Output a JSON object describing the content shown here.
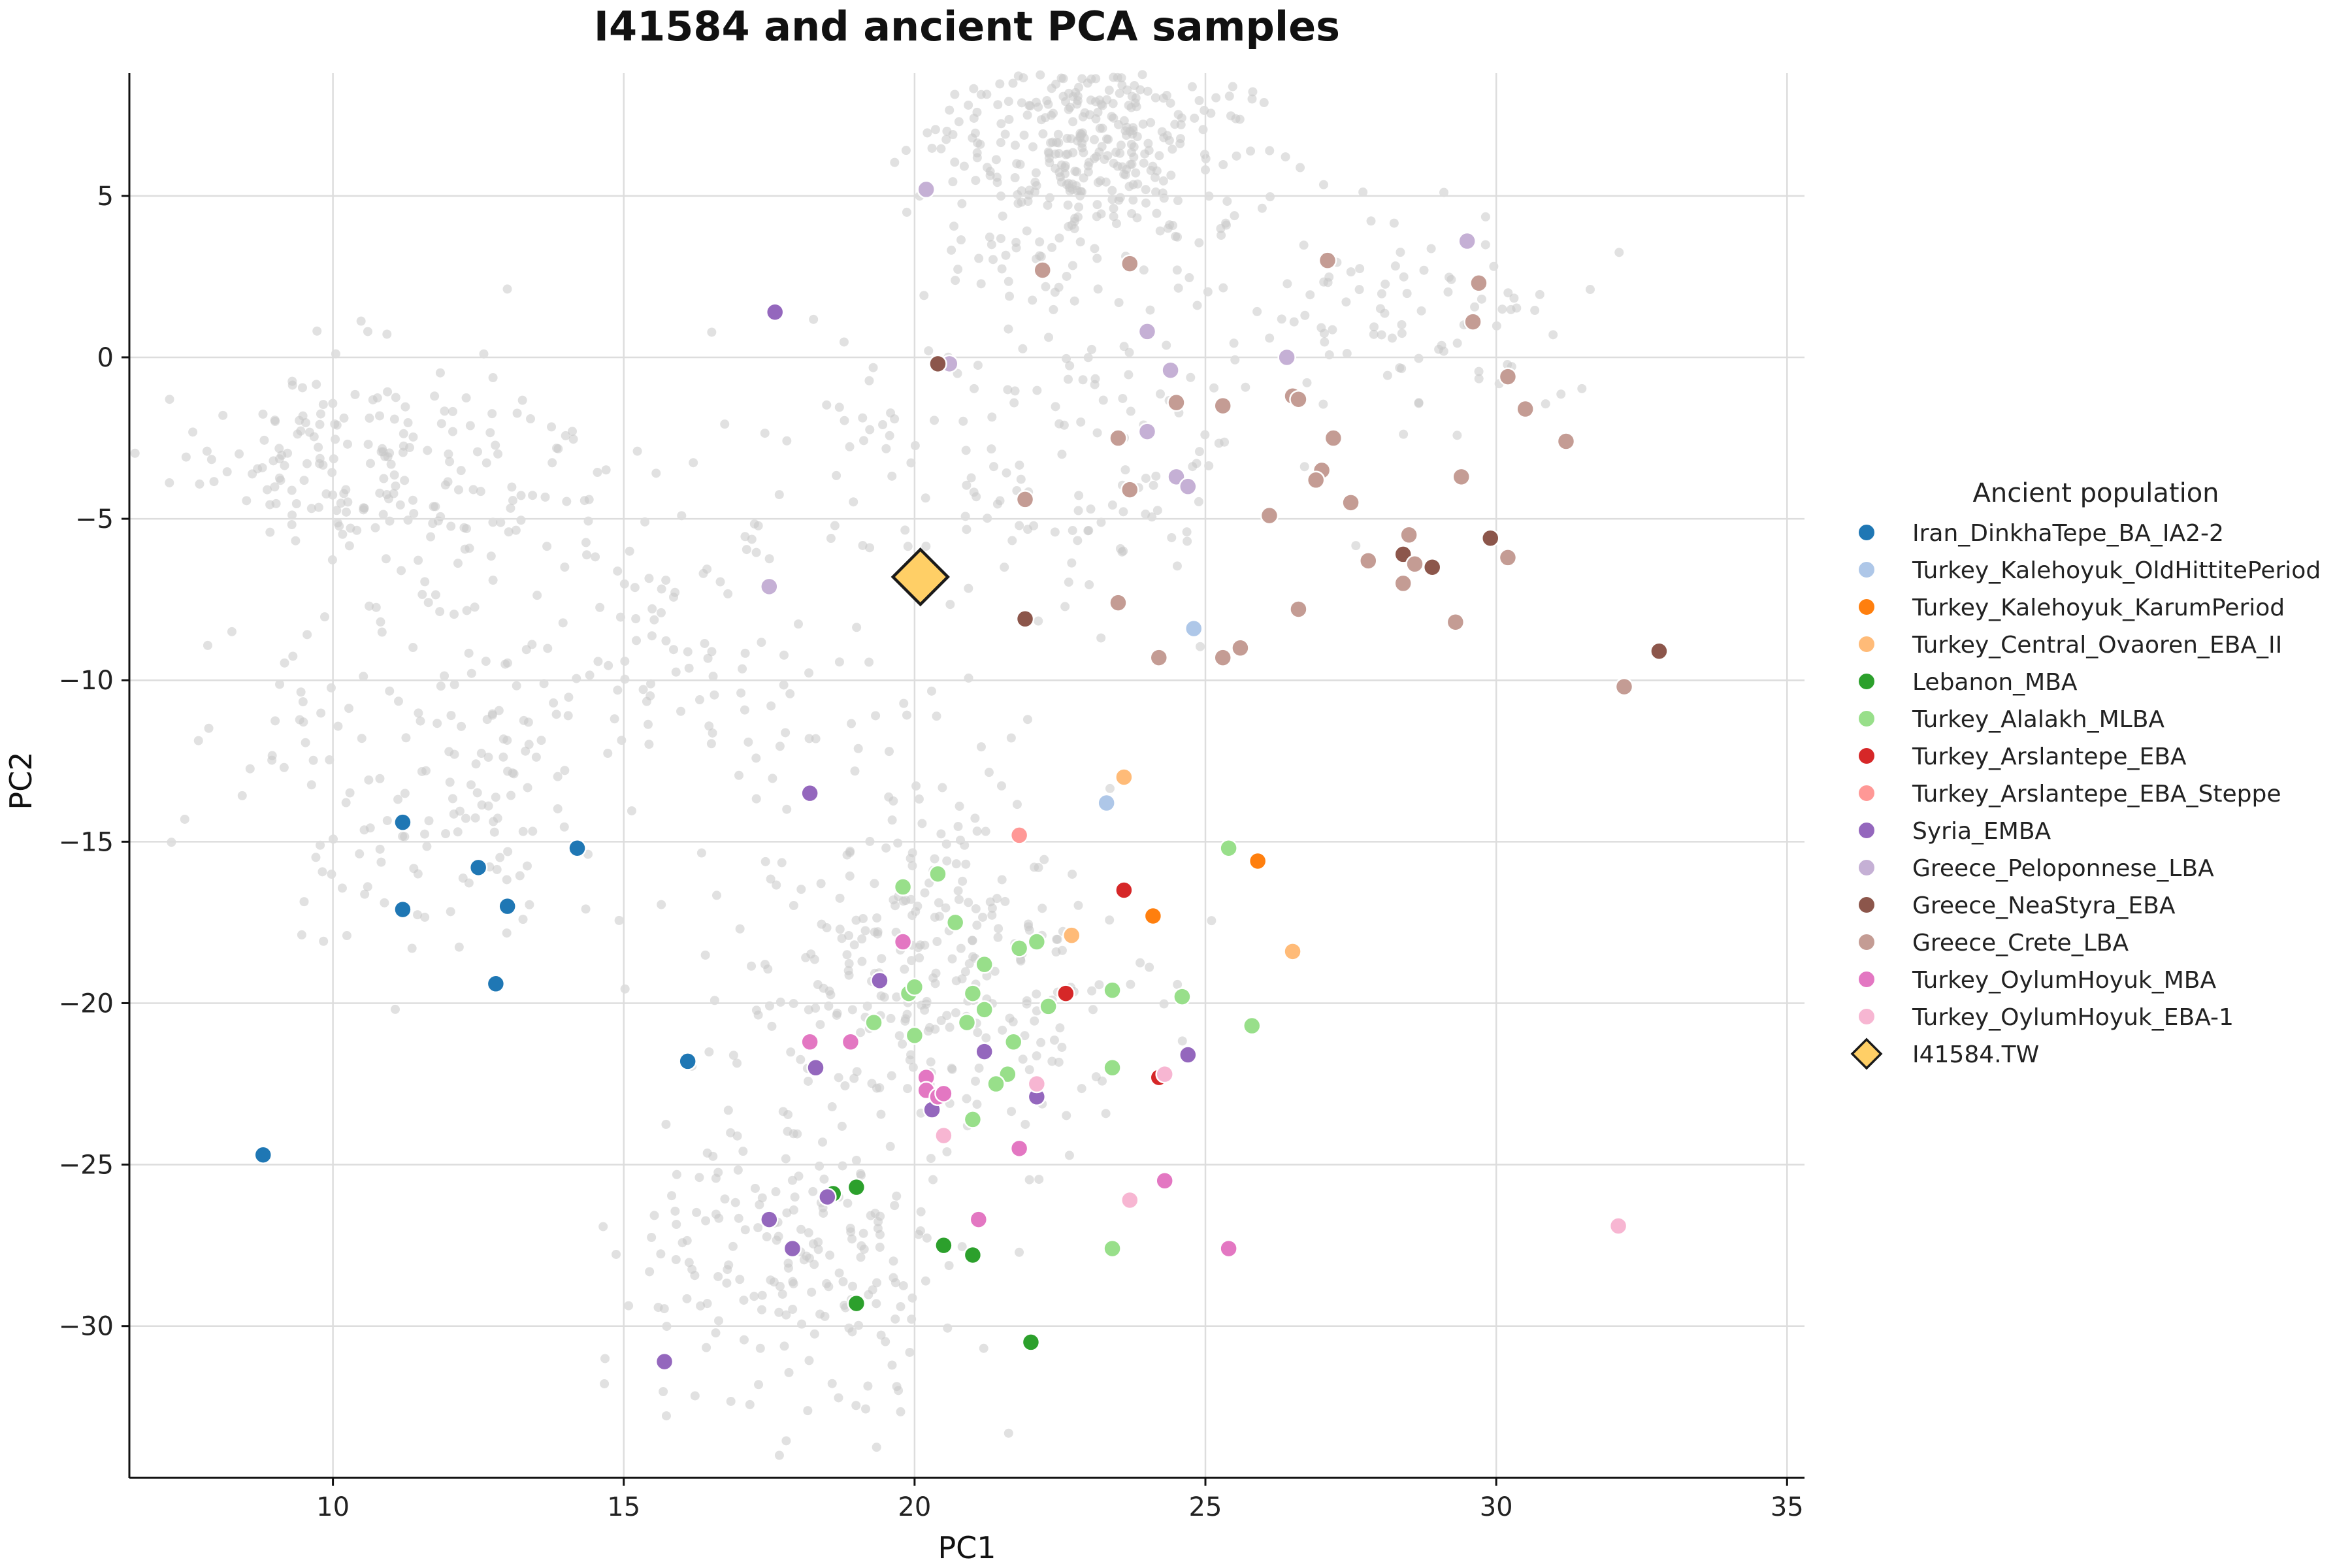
{
  "chart_data": {
    "type": "scatter",
    "title": "I41584 and ancient PCA samples",
    "xlabel": "PC1",
    "ylabel": "PC2",
    "xlim": [
      6.5,
      35.3
    ],
    "ylim": [
      -34.7,
      8.8
    ],
    "xticks": [
      10,
      15,
      20,
      25,
      30,
      35
    ],
    "yticks": [
      5,
      0,
      -5,
      -10,
      -15,
      -20,
      -25,
      -30
    ],
    "x_tick_labels": [
      "10",
      "15",
      "20",
      "25",
      "30",
      "35"
    ],
    "y_tick_labels": [
      "5",
      "0",
      "−5",
      "−10",
      "−15",
      "−20",
      "−25",
      "−30"
    ],
    "grid": true,
    "legend_placement": "right, outside plot",
    "legend_title": "Ancient population",
    "background_color": "#c8c8c8",
    "series": [
      {
        "name": "Iran_DinkhaTepe_BA_IA2-2",
        "color": "#1f77b4",
        "points": [
          [
            11.2,
            -14.4
          ],
          [
            11.2,
            -17.1
          ],
          [
            12.5,
            -15.8
          ],
          [
            13.0,
            -17.0
          ],
          [
            14.2,
            -15.2
          ],
          [
            12.8,
            -19.4
          ],
          [
            16.1,
            -21.8
          ],
          [
            8.8,
            -24.7
          ]
        ]
      },
      {
        "name": "Turkey_Kalehoyuk_OldHittitePeriod",
        "color": "#aec7e8",
        "points": [
          [
            23.3,
            -13.8
          ],
          [
            24.8,
            -8.4
          ]
        ]
      },
      {
        "name": "Turkey_Kalehoyuk_KarumPeriod",
        "color": "#ff7f0e",
        "points": [
          [
            25.9,
            -15.6
          ],
          [
            24.1,
            -17.3
          ]
        ]
      },
      {
        "name": "Turkey_Central_Ovaoren_EBA_II",
        "color": "#ffbb78",
        "points": [
          [
            23.6,
            -13.0
          ],
          [
            22.7,
            -17.9
          ],
          [
            26.5,
            -18.4
          ]
        ]
      },
      {
        "name": "Lebanon_MBA",
        "color": "#2ca02c",
        "points": [
          [
            18.6,
            -25.9
          ],
          [
            19.0,
            -25.7
          ],
          [
            20.5,
            -27.5
          ],
          [
            21.0,
            -27.8
          ],
          [
            19.0,
            -29.3
          ],
          [
            22.0,
            -30.5
          ]
        ]
      },
      {
        "name": "Turkey_Alalakh_MLBA",
        "color": "#98df8a",
        "points": [
          [
            19.8,
            -16.4
          ],
          [
            20.4,
            -16.0
          ],
          [
            20.7,
            -17.5
          ],
          [
            21.8,
            -18.3
          ],
          [
            22.1,
            -18.1
          ],
          [
            21.2,
            -18.8
          ],
          [
            19.9,
            -19.7
          ],
          [
            20.0,
            -19.5
          ],
          [
            21.0,
            -19.7
          ],
          [
            21.2,
            -20.2
          ],
          [
            22.3,
            -20.1
          ],
          [
            23.4,
            -19.6
          ],
          [
            24.6,
            -19.8
          ],
          [
            19.3,
            -20.6
          ],
          [
            20.0,
            -21.0
          ],
          [
            20.9,
            -20.6
          ],
          [
            21.7,
            -21.2
          ],
          [
            21.6,
            -22.2
          ],
          [
            21.4,
            -22.5
          ],
          [
            23.4,
            -22.0
          ],
          [
            21.0,
            -23.6
          ],
          [
            25.4,
            -15.2
          ],
          [
            25.8,
            -20.7
          ],
          [
            23.4,
            -27.6
          ]
        ]
      },
      {
        "name": "Turkey_Arslantepe_EBA",
        "color": "#d62728",
        "points": [
          [
            23.6,
            -16.5
          ],
          [
            22.6,
            -19.7
          ],
          [
            24.2,
            -22.3
          ]
        ]
      },
      {
        "name": "Turkey_Arslantepe_EBA_Steppe",
        "color": "#ff9896",
        "points": [
          [
            21.8,
            -14.8
          ]
        ]
      },
      {
        "name": "Syria_EMBA",
        "color": "#9467bd",
        "points": [
          [
            17.6,
            1.4
          ],
          [
            18.2,
            -13.5
          ],
          [
            19.4,
            -19.3
          ],
          [
            18.3,
            -22.0
          ],
          [
            20.3,
            -23.3
          ],
          [
            21.2,
            -21.5
          ],
          [
            22.1,
            -22.9
          ],
          [
            24.7,
            -21.6
          ],
          [
            17.5,
            -26.7
          ],
          [
            17.9,
            -27.6
          ],
          [
            18.5,
            -26.0
          ],
          [
            15.7,
            -31.1
          ]
        ]
      },
      {
        "name": "Greece_Peloponnese_LBA",
        "color": "#c5b0d5",
        "points": [
          [
            20.2,
            5.2
          ],
          [
            20.6,
            -0.2
          ],
          [
            24.0,
            0.8
          ],
          [
            24.4,
            -0.4
          ],
          [
            26.4,
            0.0
          ],
          [
            29.5,
            3.6
          ],
          [
            24.0,
            -2.3
          ],
          [
            24.5,
            -3.7
          ],
          [
            24.7,
            -4.0
          ],
          [
            17.5,
            -7.1
          ]
        ]
      },
      {
        "name": "Greece_NeaStyra_EBA",
        "color": "#8c564b",
        "points": [
          [
            20.4,
            -0.2
          ],
          [
            21.9,
            -8.1
          ],
          [
            29.9,
            -5.6
          ],
          [
            28.4,
            -6.1
          ],
          [
            28.9,
            -6.5
          ],
          [
            32.8,
            -9.1
          ]
        ]
      },
      {
        "name": "Greece_Crete_LBA",
        "color": "#c49c94",
        "points": [
          [
            22.2,
            2.7
          ],
          [
            23.7,
            2.9
          ],
          [
            27.1,
            3.0
          ],
          [
            29.7,
            2.3
          ],
          [
            29.6,
            1.1
          ],
          [
            24.5,
            -1.4
          ],
          [
            25.3,
            -1.5
          ],
          [
            26.5,
            -1.2
          ],
          [
            26.6,
            -1.3
          ],
          [
            30.2,
            -0.6
          ],
          [
            30.5,
            -1.6
          ],
          [
            23.5,
            -2.5
          ],
          [
            27.2,
            -2.5
          ],
          [
            31.2,
            -2.6
          ],
          [
            23.7,
            -4.1
          ],
          [
            21.9,
            -4.4
          ],
          [
            27.0,
            -3.5
          ],
          [
            26.9,
            -3.8
          ],
          [
            27.5,
            -4.5
          ],
          [
            29.4,
            -3.7
          ],
          [
            26.1,
            -4.9
          ],
          [
            28.5,
            -5.5
          ],
          [
            27.8,
            -6.3
          ],
          [
            28.6,
            -6.4
          ],
          [
            30.2,
            -6.2
          ],
          [
            28.4,
            -7.0
          ],
          [
            23.5,
            -7.6
          ],
          [
            26.6,
            -7.8
          ],
          [
            29.3,
            -8.2
          ],
          [
            25.6,
            -9.0
          ],
          [
            24.2,
            -9.3
          ],
          [
            25.3,
            -9.3
          ],
          [
            32.2,
            -10.2
          ]
        ]
      },
      {
        "name": "Turkey_OylumHoyuk_MBA",
        "color": "#e377c2",
        "points": [
          [
            19.8,
            -18.1
          ],
          [
            18.2,
            -21.2
          ],
          [
            18.9,
            -21.2
          ],
          [
            20.2,
            -22.3
          ],
          [
            20.2,
            -22.7
          ],
          [
            20.4,
            -22.9
          ],
          [
            20.5,
            -22.8
          ],
          [
            21.8,
            -24.5
          ],
          [
            24.3,
            -25.5
          ],
          [
            21.1,
            -26.7
          ],
          [
            25.4,
            -27.6
          ]
        ]
      },
      {
        "name": "Turkey_OylumHoyuk_EBA-1",
        "color": "#f7b6d2",
        "points": [
          [
            22.1,
            -22.5
          ],
          [
            24.3,
            -22.2
          ],
          [
            20.5,
            -24.1
          ],
          [
            23.7,
            -26.1
          ],
          [
            32.1,
            -26.9
          ]
        ]
      }
    ],
    "highlight": {
      "name": "I41584.TW",
      "color": "#ffcf66",
      "x": 20.1,
      "y": -6.8,
      "marker": "diamond"
    }
  }
}
